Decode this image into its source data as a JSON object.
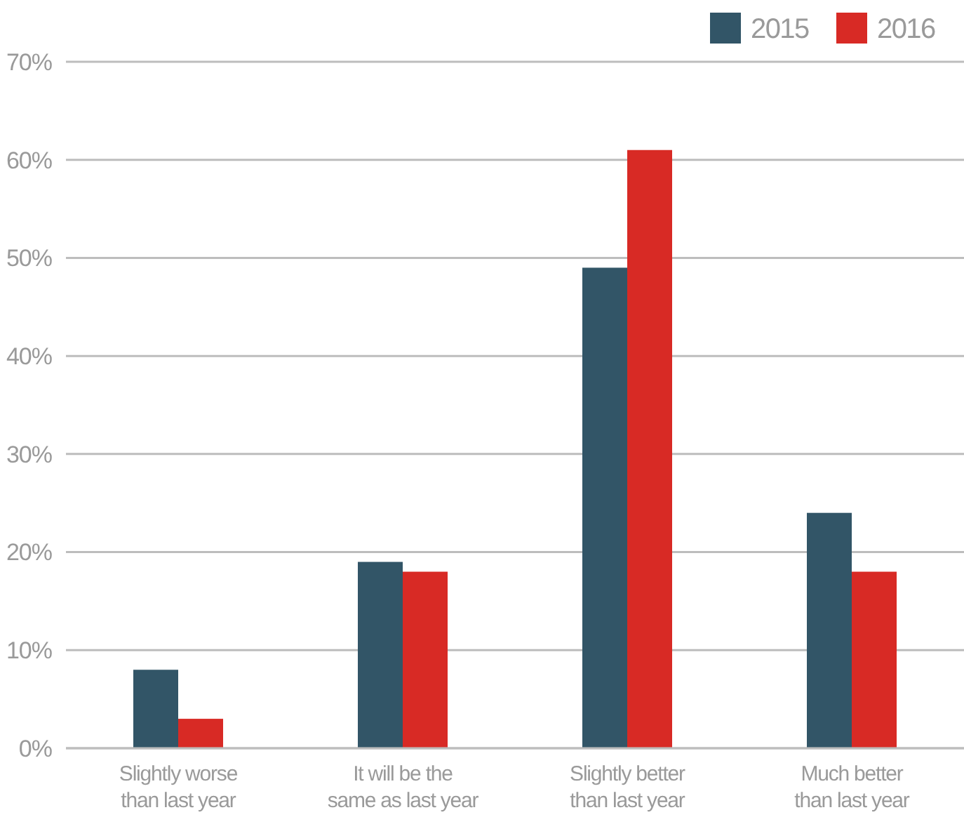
{
  "chart_data": {
    "type": "bar",
    "categories": [
      "Slightly worse than last year",
      "It will be the same as last year",
      "Slightly better than last year",
      "Much better than last year"
    ],
    "series": [
      {
        "name": "2015",
        "color": "#325567",
        "values": [
          8,
          19,
          49,
          24
        ]
      },
      {
        "name": "2016",
        "color": "#d82a25",
        "values": [
          3,
          18,
          61,
          18
        ]
      }
    ],
    "ylim": [
      0,
      70
    ],
    "yticks": [
      {
        "value": 0,
        "label": "0%"
      },
      {
        "value": 10,
        "label": "10%"
      },
      {
        "value": 20,
        "label": "20%"
      },
      {
        "value": 30,
        "label": "30%"
      },
      {
        "value": 40,
        "label": "40%"
      },
      {
        "value": 50,
        "label": "50%"
      },
      {
        "value": 60,
        "label": "60%"
      },
      {
        "value": 70,
        "label": "70%"
      }
    ],
    "grid": "y",
    "legend": "top right"
  }
}
